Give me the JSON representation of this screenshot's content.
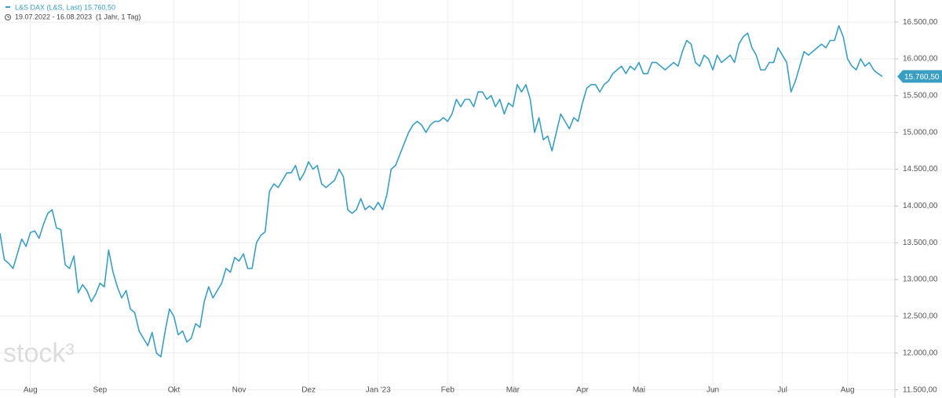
{
  "chart_data": {
    "type": "line",
    "legend_name": "L&S DAX (L&S, Last)",
    "legend_value": "15.760,50",
    "date_range": "19.07.2022 - 16.08.2023",
    "period": "(1 Jahr, 1 Tag)",
    "watermark": "stock³",
    "last_label": "15.760,50",
    "color": "#3a9ec2",
    "grid": true,
    "ylim": [
      11400,
      16800
    ],
    "yticks": [
      {
        "value": 11500,
        "label": "11.500,00"
      },
      {
        "value": 12000,
        "label": "12.000,00"
      },
      {
        "value": 12500,
        "label": "12.500,00"
      },
      {
        "value": 13000,
        "label": "13.000,00"
      },
      {
        "value": 13500,
        "label": "13.500,00"
      },
      {
        "value": 14000,
        "label": "14.000,00"
      },
      {
        "value": 14500,
        "label": "14.500,00"
      },
      {
        "value": 15000,
        "label": "15.000,00"
      },
      {
        "value": 15500,
        "label": "15.500,00"
      },
      {
        "value": 16000,
        "label": "16.000,00"
      },
      {
        "value": 16500,
        "label": "16.500,00"
      }
    ],
    "categories": [
      null,
      null,
      null,
      null,
      null,
      null,
      null,
      "Aug",
      null,
      null,
      null,
      null,
      null,
      null,
      null,
      null,
      null,
      null,
      null,
      null,
      null,
      null,
      null,
      "Sep",
      null,
      null,
      null,
      null,
      null,
      null,
      null,
      null,
      null,
      null,
      null,
      null,
      null,
      null,
      null,
      null,
      "Okt",
      null,
      null,
      null,
      null,
      null,
      null,
      null,
      null,
      null,
      null,
      null,
      null,
      null,
      null,
      "Nov",
      null,
      null,
      null,
      null,
      null,
      null,
      null,
      null,
      null,
      null,
      null,
      null,
      null,
      null,
      null,
      "Dez",
      null,
      null,
      null,
      null,
      null,
      null,
      null,
      null,
      null,
      null,
      null,
      null,
      null,
      null,
      null,
      "Jan '23",
      null,
      null,
      null,
      null,
      null,
      null,
      null,
      null,
      null,
      null,
      null,
      null,
      null,
      null,
      null,
      "Feb",
      null,
      null,
      null,
      null,
      null,
      null,
      null,
      null,
      null,
      null,
      null,
      null,
      null,
      null,
      "Mär",
      null,
      null,
      null,
      null,
      null,
      null,
      null,
      null,
      null,
      null,
      null,
      null,
      null,
      null,
      null,
      "Apr",
      null,
      null,
      null,
      null,
      null,
      null,
      null,
      null,
      null,
      null,
      null,
      null,
      "Mai",
      null,
      null,
      null,
      null,
      null,
      null,
      null,
      null,
      null,
      null,
      null,
      null,
      null,
      null,
      null,
      null,
      "Jun",
      null,
      null,
      null,
      null,
      null,
      null,
      null,
      null,
      null,
      null,
      null,
      null,
      null,
      null,
      null,
      "Jul",
      null,
      null,
      null,
      null,
      null,
      null,
      null,
      null,
      null,
      null,
      null,
      null,
      null,
      null,
      "Aug",
      null,
      null,
      null,
      null,
      null,
      null,
      null,
      null
    ],
    "series": [
      {
        "name": "L&S DAX (L&S, Last)",
        "color": "#3a9ec2",
        "values": [
          13630,
          13270,
          13220,
          13150,
          13350,
          13550,
          13450,
          13640,
          13660,
          13560,
          13750,
          13900,
          13950,
          13700,
          13680,
          13200,
          13150,
          13320,
          12820,
          12930,
          12850,
          12700,
          12800,
          12950,
          12900,
          13400,
          13100,
          12900,
          12750,
          12850,
          12600,
          12550,
          12300,
          12200,
          12100,
          12280,
          12000,
          11950,
          12300,
          12600,
          12500,
          12250,
          12300,
          12150,
          12200,
          12400,
          12350,
          12700,
          12900,
          12750,
          12850,
          12950,
          13150,
          13100,
          13300,
          13250,
          13350,
          13150,
          13150,
          13500,
          13600,
          13650,
          14200,
          14300,
          14250,
          14350,
          14450,
          14450,
          14550,
          14350,
          14450,
          14600,
          14500,
          14550,
          14300,
          14250,
          14300,
          14350,
          14500,
          14400,
          13950,
          13900,
          13950,
          14100,
          13950,
          14000,
          13950,
          14050,
          13950,
          14150,
          14500,
          14550,
          14700,
          14850,
          15000,
          15100,
          15150,
          15100,
          15000,
          15100,
          15150,
          15150,
          15200,
          15150,
          15250,
          15450,
          15350,
          15450,
          15450,
          15350,
          15550,
          15550,
          15450,
          15500,
          15350,
          15450,
          15250,
          15400,
          15350,
          15650,
          15550,
          15650,
          15450,
          15000,
          15200,
          14900,
          14950,
          14750,
          15000,
          15250,
          15150,
          15050,
          15200,
          15150,
          15400,
          15600,
          15650,
          15650,
          15550,
          15650,
          15700,
          15800,
          15850,
          15900,
          15800,
          15900,
          15850,
          15950,
          15800,
          15800,
          15950,
          15950,
          15900,
          15850,
          15900,
          15950,
          15900,
          16100,
          16250,
          16200,
          15950,
          15900,
          16050,
          16000,
          15850,
          16050,
          15950,
          16000,
          16050,
          15950,
          16200,
          16300,
          16350,
          16150,
          16050,
          15850,
          15850,
          15950,
          15950,
          16150,
          16050,
          15950,
          15550,
          15700,
          15900,
          16100,
          16050,
          16100,
          16150,
          16200,
          16150,
          16250,
          16250,
          16450,
          16300,
          16000,
          15900,
          15850,
          16000,
          15900,
          15950,
          15850,
          15800,
          15760.5
        ]
      }
    ]
  }
}
